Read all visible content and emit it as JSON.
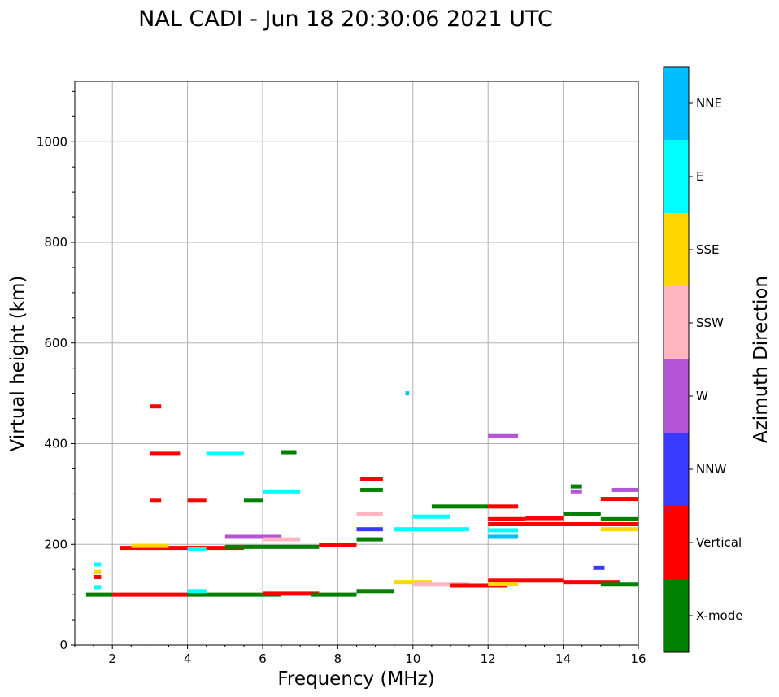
{
  "chart_data": {
    "type": "scatter",
    "title": "NAL CADI - Jun 18 20:30:06 2021 UTC",
    "xlabel": "Frequency (MHz)",
    "ylabel": "Virtual height (km)",
    "xlim": [
      1,
      16
    ],
    "ylim": [
      0,
      1120
    ],
    "xticks": [
      2,
      4,
      6,
      8,
      10,
      12,
      14,
      16
    ],
    "yticks": [
      0,
      200,
      400,
      600,
      800,
      1000
    ],
    "grid": true,
    "colorbar": {
      "label": "Azimuth Direction",
      "categories": [
        {
          "name": "X-mode",
          "color": "#008000"
        },
        {
          "name": "Vertical",
          "color": "#ff0000"
        },
        {
          "name": "NNW",
          "color": "#3a3aff"
        },
        {
          "name": "W",
          "color": "#b455d6"
        },
        {
          "name": "SSW",
          "color": "#ffb6c1"
        },
        {
          "name": "SSE",
          "color": "#ffd700"
        },
        {
          "name": "E",
          "color": "#00ffff"
        },
        {
          "name": "NNE",
          "color": "#00bfff"
        }
      ]
    },
    "traces": [
      {
        "x0": 1.3,
        "x1": 2.0,
        "y": 100,
        "c": "X-mode"
      },
      {
        "x0": 2.0,
        "x1": 4.0,
        "y": 100,
        "c": "Vertical"
      },
      {
        "x0": 4.0,
        "x1": 6.5,
        "y": 100,
        "c": "X-mode"
      },
      {
        "x0": 6.0,
        "x1": 7.5,
        "y": 102,
        "c": "Vertical"
      },
      {
        "x0": 7.3,
        "x1": 8.5,
        "y": 100,
        "c": "X-mode"
      },
      {
        "x0": 8.5,
        "x1": 9.5,
        "y": 107,
        "c": "X-mode"
      },
      {
        "x0": 4.0,
        "x1": 4.5,
        "y": 107,
        "c": "E"
      },
      {
        "x0": 1.5,
        "x1": 1.7,
        "y": 115,
        "c": "E"
      },
      {
        "x0": 1.5,
        "x1": 1.7,
        "y": 135,
        "c": "Vertical"
      },
      {
        "x0": 1.5,
        "x1": 1.7,
        "y": 145,
        "c": "SSE"
      },
      {
        "x0": 1.5,
        "x1": 1.7,
        "y": 160,
        "c": "E"
      },
      {
        "x0": 2.2,
        "x1": 5.5,
        "y": 193,
        "c": "Vertical"
      },
      {
        "x0": 2.5,
        "x1": 3.5,
        "y": 197,
        "c": "SSE"
      },
      {
        "x0": 4.0,
        "x1": 4.5,
        "y": 190,
        "c": "E"
      },
      {
        "x0": 5.0,
        "x1": 7.5,
        "y": 195,
        "c": "X-mode"
      },
      {
        "x0": 5.0,
        "x1": 6.5,
        "y": 215,
        "c": "W"
      },
      {
        "x0": 6.0,
        "x1": 7.0,
        "y": 210,
        "c": "SSW"
      },
      {
        "x0": 7.5,
        "x1": 8.5,
        "y": 198,
        "c": "Vertical"
      },
      {
        "x0": 3.0,
        "x1": 3.3,
        "y": 288,
        "c": "Vertical"
      },
      {
        "x0": 4.0,
        "x1": 4.5,
        "y": 288,
        "c": "Vertical"
      },
      {
        "x0": 5.5,
        "x1": 6.0,
        "y": 288,
        "c": "X-mode"
      },
      {
        "x0": 6.0,
        "x1": 7.0,
        "y": 305,
        "c": "E"
      },
      {
        "x0": 3.0,
        "x1": 3.8,
        "y": 380,
        "c": "Vertical"
      },
      {
        "x0": 4.5,
        "x1": 5.5,
        "y": 380,
        "c": "E"
      },
      {
        "x0": 6.5,
        "x1": 6.9,
        "y": 383,
        "c": "X-mode"
      },
      {
        "x0": 3.0,
        "x1": 3.3,
        "y": 474,
        "c": "Vertical"
      },
      {
        "x0": 8.5,
        "x1": 9.2,
        "y": 230,
        "c": "NNW"
      },
      {
        "x0": 8.5,
        "x1": 9.2,
        "y": 260,
        "c": "SSW"
      },
      {
        "x0": 8.5,
        "x1": 9.2,
        "y": 210,
        "c": "X-mode"
      },
      {
        "x0": 8.6,
        "x1": 9.2,
        "y": 308,
        "c": "X-mode"
      },
      {
        "x0": 8.6,
        "x1": 9.2,
        "y": 330,
        "c": "Vertical"
      },
      {
        "x0": 9.5,
        "x1": 10.5,
        "y": 125,
        "c": "SSE"
      },
      {
        "x0": 10.0,
        "x1": 11.5,
        "y": 120,
        "c": "SSW"
      },
      {
        "x0": 11.0,
        "x1": 12.5,
        "y": 118,
        "c": "Vertical"
      },
      {
        "x0": 12.0,
        "x1": 14.0,
        "y": 128,
        "c": "Vertical"
      },
      {
        "x0": 12.0,
        "x1": 12.8,
        "y": 122,
        "c": "SSE"
      },
      {
        "x0": 14.0,
        "x1": 15.5,
        "y": 125,
        "c": "Vertical"
      },
      {
        "x0": 15.0,
        "x1": 16.0,
        "y": 120,
        "c": "X-mode"
      },
      {
        "x0": 9.5,
        "x1": 11.5,
        "y": 230,
        "c": "E"
      },
      {
        "x0": 10.0,
        "x1": 11.0,
        "y": 255,
        "c": "E"
      },
      {
        "x0": 10.5,
        "x1": 12.0,
        "y": 275,
        "c": "X-mode"
      },
      {
        "x0": 12.0,
        "x1": 12.8,
        "y": 215,
        "c": "NNE"
      },
      {
        "x0": 12.0,
        "x1": 12.8,
        "y": 228,
        "c": "E"
      },
      {
        "x0": 12.0,
        "x1": 16.0,
        "y": 240,
        "c": "Vertical"
      },
      {
        "x0": 12.0,
        "x1": 13.0,
        "y": 250,
        "c": "Vertical"
      },
      {
        "x0": 12.0,
        "x1": 12.8,
        "y": 275,
        "c": "Vertical"
      },
      {
        "x0": 13.0,
        "x1": 14.0,
        "y": 252,
        "c": "Vertical"
      },
      {
        "x0": 14.0,
        "x1": 15.0,
        "y": 260,
        "c": "X-mode"
      },
      {
        "x0": 14.2,
        "x1": 14.5,
        "y": 315,
        "c": "X-mode"
      },
      {
        "x0": 14.2,
        "x1": 14.5,
        "y": 305,
        "c": "W"
      },
      {
        "x0": 15.0,
        "x1": 16.0,
        "y": 290,
        "c": "Vertical"
      },
      {
        "x0": 15.0,
        "x1": 16.0,
        "y": 230,
        "c": "SSE"
      },
      {
        "x0": 15.0,
        "x1": 16.0,
        "y": 250,
        "c": "X-mode"
      },
      {
        "x0": 15.3,
        "x1": 16.0,
        "y": 308,
        "c": "W"
      },
      {
        "x0": 12.0,
        "x1": 12.8,
        "y": 415,
        "c": "W"
      },
      {
        "x0": 9.8,
        "x1": 9.9,
        "y": 500,
        "c": "NNE"
      },
      {
        "x0": 14.8,
        "x1": 15.1,
        "y": 153,
        "c": "NNW"
      }
    ]
  }
}
